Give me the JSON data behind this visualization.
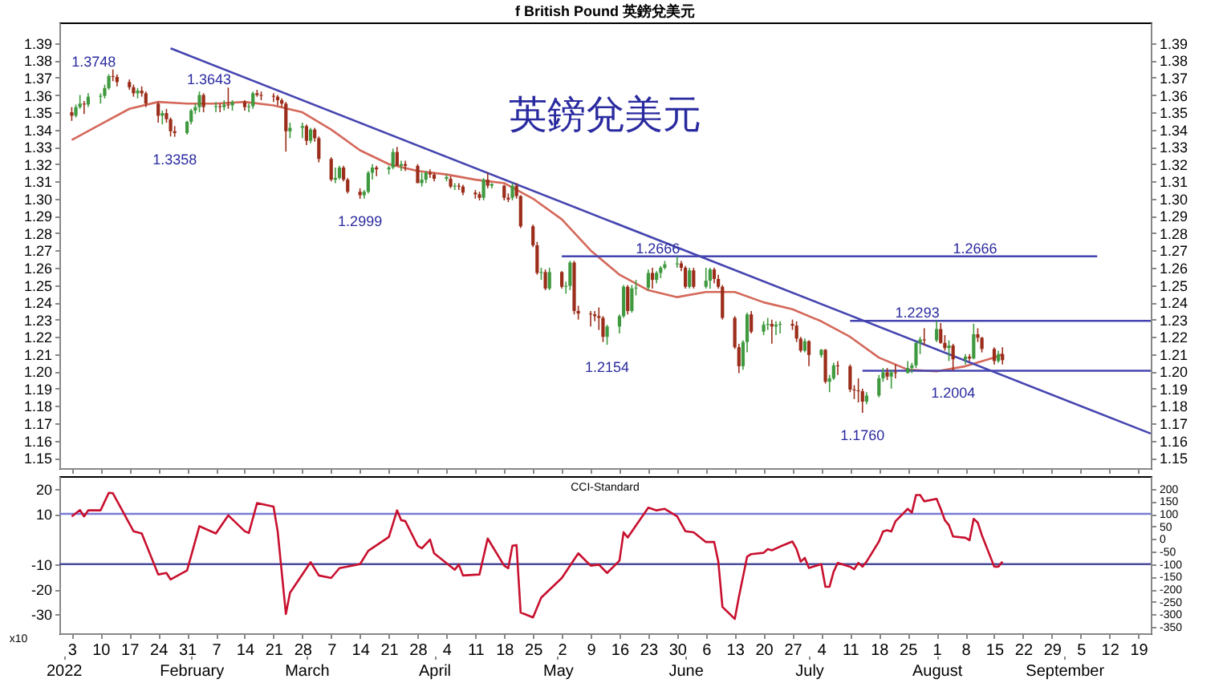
{
  "chart_data": [
    {
      "type": "candlestick",
      "title": "f British Pound 英鎊兌美元",
      "xlim": [
        "2021-12-31",
        "2022-09-22"
      ],
      "tick_labels": "y",
      "xticks": [
        "2022-01-03",
        "2022-01-10",
        "2022-01-17",
        "2022-01-24",
        "2022-01-31",
        "2022-02-07",
        "2022-02-14",
        "2022-02-21",
        "2022-02-28",
        "2022-03-07",
        "2022-03-14",
        "2022-03-21",
        "2022-03-28",
        "2022-04-04",
        "2022-04-11",
        "2022-04-18",
        "2022-04-25",
        "2022-05-02",
        "2022-05-09",
        "2022-05-16",
        "2022-05-23",
        "2022-05-30",
        "2022-06-06",
        "2022-06-13",
        "2022-06-20",
        "2022-06-27",
        "2022-07-04",
        "2022-07-11",
        "2022-07-18",
        "2022-07-25",
        "2022-08-01",
        "2022-08-08",
        "2022-08-15",
        "2022-08-22",
        "2022-08-29",
        "2022-09-05",
        "2022-09-12",
        "2022-09-19"
      ],
      "ylim": [
        1.144,
        1.402
      ],
      "yticks": [
        1.15,
        1.16,
        1.17,
        1.18,
        1.19,
        {
          "value": 1.2,
          "label": "1.20"
        },
        1.21,
        1.22,
        1.23,
        1.24,
        1.25,
        1.26,
        1.27,
        1.28,
        1.29,
        {
          "value": 1.3,
          "label": "1.30"
        },
        1.31,
        1.32,
        1.33,
        1.34,
        1.35,
        1.36,
        1.37,
        1.38,
        1.39
      ],
      "y2lim": [
        1.144,
        1.402
      ],
      "y2ticks": [
        1.15,
        1.16,
        1.17,
        1.18,
        1.19,
        {
          "value": 1.2,
          "label": "1.20"
        },
        1.21,
        1.22,
        1.23,
        1.24,
        1.25,
        1.26,
        1.27,
        1.28,
        1.29,
        {
          "value": 1.3,
          "label": "1.30"
        },
        1.31,
        1.32,
        1.33,
        1.34,
        1.35,
        1.36,
        1.37,
        1.38,
        1.39
      ],
      "x": [
        "2022-01-03",
        "2022-01-04",
        "2022-01-05",
        "2022-01-06",
        "2022-01-07",
        "2022-01-10",
        "2022-01-11",
        "2022-01-12",
        "2022-01-13",
        "2022-01-14",
        "2022-01-17",
        "2022-01-18",
        "2022-01-19",
        "2022-01-20",
        "2022-01-21",
        "2022-01-24",
        "2022-01-25",
        "2022-01-26",
        "2022-01-27",
        "2022-01-28",
        "2022-01-31",
        "2022-02-01",
        "2022-02-02",
        "2022-02-03",
        "2022-02-04",
        "2022-02-07",
        "2022-02-08",
        "2022-02-09",
        "2022-02-10",
        "2022-02-11",
        "2022-02-14",
        "2022-02-15",
        "2022-02-16",
        "2022-02-17",
        "2022-02-18",
        "2022-02-21",
        "2022-02-22",
        "2022-02-23",
        "2022-02-24",
        "2022-02-25",
        "2022-02-28",
        "2022-03-01",
        "2022-03-02",
        "2022-03-03",
        "2022-03-04",
        "2022-03-07",
        "2022-03-08",
        "2022-03-09",
        "2022-03-10",
        "2022-03-11",
        "2022-03-14",
        "2022-03-15",
        "2022-03-16",
        "2022-03-17",
        "2022-03-18",
        "2022-03-21",
        "2022-03-22",
        "2022-03-23",
        "2022-03-24",
        "2022-03-25",
        "2022-03-28",
        "2022-03-29",
        "2022-03-30",
        "2022-03-31",
        "2022-04-01",
        "2022-04-04",
        "2022-04-05",
        "2022-04-06",
        "2022-04-07",
        "2022-04-08",
        "2022-04-11",
        "2022-04-12",
        "2022-04-13",
        "2022-04-14",
        "2022-04-15",
        "2022-04-18",
        "2022-04-19",
        "2022-04-20",
        "2022-04-21",
        "2022-04-22",
        "2022-04-25",
        "2022-04-26",
        "2022-04-27",
        "2022-04-28",
        "2022-04-29",
        "2022-05-02",
        "2022-05-03",
        "2022-05-04",
        "2022-05-05",
        "2022-05-06",
        "2022-05-09",
        "2022-05-10",
        "2022-05-11",
        "2022-05-12",
        "2022-05-13",
        "2022-05-16",
        "2022-05-17",
        "2022-05-18",
        "2022-05-19",
        "2022-05-20",
        "2022-05-23",
        "2022-05-24",
        "2022-05-25",
        "2022-05-26",
        "2022-05-27",
        "2022-05-30",
        "2022-05-31",
        "2022-06-01",
        "2022-06-02",
        "2022-06-03",
        "2022-06-06",
        "2022-06-07",
        "2022-06-08",
        "2022-06-09",
        "2022-06-10",
        "2022-06-13",
        "2022-06-14",
        "2022-06-15",
        "2022-06-16",
        "2022-06-17",
        "2022-06-20",
        "2022-06-21",
        "2022-06-22",
        "2022-06-23",
        "2022-06-24",
        "2022-06-27",
        "2022-06-28",
        "2022-06-29",
        "2022-06-30",
        "2022-07-01",
        "2022-07-04",
        "2022-07-05",
        "2022-07-06",
        "2022-07-07",
        "2022-07-08",
        "2022-07-11",
        "2022-07-12",
        "2022-07-13",
        "2022-07-14",
        "2022-07-15",
        "2022-07-18",
        "2022-07-19",
        "2022-07-20",
        "2022-07-21",
        "2022-07-22",
        "2022-07-25",
        "2022-07-26",
        "2022-07-27",
        "2022-07-28",
        "2022-07-29",
        "2022-08-01",
        "2022-08-02",
        "2022-08-03",
        "2022-08-04",
        "2022-08-05",
        "2022-08-08",
        "2022-08-09",
        "2022-08-10",
        "2022-08-11",
        "2022-08-12",
        "2022-08-15",
        "2022-08-16",
        "2022-08-17"
      ],
      "ohlc": [
        [
          1.35,
          1.353,
          1.345,
          1.348
        ],
        [
          1.348,
          1.3545,
          1.347,
          1.353
        ],
        [
          1.353,
          1.36,
          1.352,
          1.355
        ],
        [
          1.355,
          1.3565,
          1.349,
          1.3545
        ],
        [
          1.3545,
          1.361,
          1.353,
          1.359
        ],
        [
          1.359,
          1.361,
          1.355,
          1.3595
        ],
        [
          1.3595,
          1.366,
          1.358,
          1.364
        ],
        [
          1.364,
          1.372,
          1.363,
          1.371
        ],
        [
          1.371,
          1.3748,
          1.368,
          1.3705
        ],
        [
          1.3705,
          1.372,
          1.365,
          1.3675
        ],
        [
          1.3675,
          1.369,
          1.363,
          1.3645
        ],
        [
          1.3645,
          1.366,
          1.359,
          1.361
        ],
        [
          1.361,
          1.364,
          1.358,
          1.3625
        ],
        [
          1.3625,
          1.365,
          1.359,
          1.361
        ],
        [
          1.361,
          1.362,
          1.353,
          1.355
        ],
        [
          1.355,
          1.356,
          1.344,
          1.348
        ],
        [
          1.348,
          1.351,
          1.343,
          1.3495
        ],
        [
          1.3495,
          1.352,
          1.344,
          1.346
        ],
        [
          1.346,
          1.347,
          1.336,
          1.339
        ],
        [
          1.339,
          1.342,
          1.3358,
          1.338
        ],
        [
          1.338,
          1.345,
          1.337,
          1.3445
        ],
        [
          1.3445,
          1.352,
          1.343,
          1.351
        ],
        [
          1.351,
          1.355,
          1.349,
          1.353
        ],
        [
          1.353,
          1.362,
          1.35,
          1.36
        ],
        [
          1.36,
          1.361,
          1.35,
          1.353
        ],
        [
          1.353,
          1.356,
          1.35,
          1.3535
        ],
        [
          1.3535,
          1.355,
          1.35,
          1.353
        ],
        [
          1.353,
          1.357,
          1.351,
          1.3545
        ],
        [
          1.3545,
          1.3643,
          1.352,
          1.354
        ],
        [
          1.354,
          1.357,
          1.351,
          1.356
        ],
        [
          1.356,
          1.357,
          1.351,
          1.353
        ],
        [
          1.353,
          1.355,
          1.35,
          1.3535
        ],
        [
          1.3535,
          1.362,
          1.352,
          1.361
        ],
        [
          1.361,
          1.363,
          1.359,
          1.36
        ],
        [
          1.36,
          1.362,
          1.357,
          1.3595
        ],
        [
          1.3595,
          1.361,
          1.356,
          1.359
        ],
        [
          1.359,
          1.36,
          1.354,
          1.357
        ],
        [
          1.357,
          1.358,
          1.353,
          1.355
        ],
        [
          1.355,
          1.356,
          1.3272,
          1.339
        ],
        [
          1.339,
          1.344,
          1.335,
          1.341
        ],
        [
          1.341,
          1.344,
          1.335,
          1.342
        ],
        [
          1.342,
          1.343,
          1.331,
          1.3335
        ],
        [
          1.3335,
          1.341,
          1.332,
          1.34
        ],
        [
          1.34,
          1.341,
          1.333,
          1.335
        ],
        [
          1.335,
          1.336,
          1.321,
          1.323
        ],
        [
          1.323,
          1.324,
          1.31,
          1.311
        ],
        [
          1.311,
          1.318,
          1.309,
          1.312
        ],
        [
          1.312,
          1.319,
          1.311,
          1.318
        ],
        [
          1.318,
          1.319,
          1.31,
          1.311
        ],
        [
          1.311,
          1.312,
          1.303,
          1.304
        ],
        [
          1.304,
          1.306,
          1.2999,
          1.302
        ],
        [
          1.302,
          1.305,
          1.3,
          1.304
        ],
        [
          1.304,
          1.316,
          1.303,
          1.315
        ],
        [
          1.315,
          1.32,
          1.311,
          1.318
        ],
        [
          1.318,
          1.319,
          1.313,
          1.317
        ],
        [
          1.317,
          1.319,
          1.314,
          1.318
        ],
        [
          1.318,
          1.329,
          1.317,
          1.327
        ],
        [
          1.327,
          1.33,
          1.319,
          1.319
        ],
        [
          1.319,
          1.322,
          1.316,
          1.32
        ],
        [
          1.32,
          1.322,
          1.316,
          1.319
        ],
        [
          1.319,
          1.32,
          1.309,
          1.309
        ],
        [
          1.309,
          1.315,
          1.307,
          1.311
        ],
        [
          1.311,
          1.316,
          1.309,
          1.315
        ],
        [
          1.315,
          1.317,
          1.312,
          1.314
        ],
        [
          1.314,
          1.315,
          1.31,
          1.3115
        ],
        [
          1.3115,
          1.314,
          1.31,
          1.3125
        ],
        [
          1.3115,
          1.313,
          1.306,
          1.307
        ],
        [
          1.307,
          1.309,
          1.305,
          1.3075
        ],
        [
          1.3075,
          1.309,
          1.305,
          1.307
        ],
        [
          1.307,
          1.308,
          1.302,
          1.3035
        ],
        [
          1.3035,
          1.305,
          1.3,
          1.3025
        ],
        [
          1.3025,
          1.304,
          1.299,
          1.3005
        ],
        [
          1.3005,
          1.312,
          1.299,
          1.311
        ],
        [
          1.311,
          1.315,
          1.306,
          1.3075
        ],
        [
          1.3075,
          1.309,
          1.306,
          1.3085
        ],
        [
          1.3075,
          1.308,
          1.299,
          1.3005
        ],
        [
          1.3005,
          1.303,
          1.298,
          1.2995
        ],
        [
          1.3005,
          1.309,
          1.299,
          1.3075
        ],
        [
          1.3075,
          1.309,
          1.3,
          1.3015
        ],
        [
          1.3015,
          1.302,
          1.283,
          1.284
        ],
        [
          1.284,
          1.285,
          1.272,
          1.273
        ],
        [
          1.273,
          1.275,
          1.256,
          1.257
        ],
        [
          1.257,
          1.26,
          1.253,
          1.2575
        ],
        [
          1.2575,
          1.259,
          1.247,
          1.248
        ],
        [
          1.248,
          1.26,
          1.247,
          1.2575
        ],
        [
          1.2575,
          1.258,
          1.248,
          1.249
        ],
        [
          1.249,
          1.252,
          1.245,
          1.2495
        ],
        [
          1.2495,
          1.264,
          1.247,
          1.263
        ],
        [
          1.263,
          1.264,
          1.233,
          1.235
        ],
        [
          1.235,
          1.238,
          1.23,
          1.2335
        ],
        [
          1.2335,
          1.235,
          1.226,
          1.233
        ],
        [
          1.233,
          1.235,
          1.229,
          1.232
        ],
        [
          1.232,
          1.237,
          1.224,
          1.231
        ],
        [
          1.231,
          1.232,
          1.217,
          1.22
        ],
        [
          1.22,
          1.227,
          1.2154,
          1.226
        ],
        [
          1.226,
          1.233,
          1.222,
          1.232
        ],
        [
          1.232,
          1.25,
          1.231,
          1.249
        ],
        [
          1.249,
          1.25,
          1.233,
          1.235
        ],
        [
          1.235,
          1.25,
          1.234,
          1.248
        ],
        [
          1.248,
          1.253,
          1.244,
          1.2485
        ],
        [
          1.2485,
          1.259,
          1.247,
          1.257
        ],
        [
          1.257,
          1.26,
          1.248,
          1.253
        ],
        [
          1.253,
          1.258,
          1.251,
          1.257
        ],
        [
          1.257,
          1.261,
          1.254,
          1.26
        ],
        [
          1.26,
          1.264,
          1.259,
          1.262
        ],
        [
          1.262,
          1.2666,
          1.26,
          1.2625
        ],
        [
          1.2625,
          1.264,
          1.258,
          1.26
        ],
        [
          1.26,
          1.261,
          1.248,
          1.249
        ],
        [
          1.249,
          1.26,
          1.248,
          1.2585
        ],
        [
          1.2585,
          1.26,
          1.248,
          1.249
        ],
        [
          1.249,
          1.26,
          1.248,
          1.2525
        ],
        [
          1.2525,
          1.26,
          1.248,
          1.259
        ],
        [
          1.259,
          1.26,
          1.251,
          1.2535
        ],
        [
          1.2535,
          1.256,
          1.248,
          1.249
        ],
        [
          1.249,
          1.25,
          1.23,
          1.231
        ],
        [
          1.231,
          1.232,
          1.213,
          1.214
        ],
        [
          1.214,
          1.216,
          1.199,
          1.203
        ],
        [
          1.203,
          1.218,
          1.201,
          1.217
        ],
        [
          1.217,
          1.234,
          1.211,
          1.233
        ],
        [
          1.233,
          1.235,
          1.222,
          1.223
        ],
        [
          1.223,
          1.229,
          1.221,
          1.227
        ],
        [
          1.227,
          1.231,
          1.224,
          1.2275
        ],
        [
          1.2275,
          1.23,
          1.216,
          1.226
        ],
        [
          1.226,
          1.229,
          1.221,
          1.227
        ],
        [
          1.227,
          1.229,
          1.222,
          1.2275
        ],
        [
          1.2275,
          1.23,
          1.224,
          1.2265
        ],
        [
          1.2265,
          1.229,
          1.217,
          1.219
        ],
        [
          1.219,
          1.22,
          1.211,
          1.212
        ],
        [
          1.212,
          1.219,
          1.211,
          1.2175
        ],
        [
          1.2175,
          1.218,
          1.203,
          1.2095
        ],
        [
          1.2095,
          1.213,
          1.208,
          1.2125
        ],
        [
          1.2125,
          1.213,
          1.193,
          1.194
        ],
        [
          1.194,
          1.198,
          1.188,
          1.196
        ],
        [
          1.196,
          1.205,
          1.195,
          1.2035
        ],
        [
          1.2035,
          1.206,
          1.198,
          1.203
        ],
        [
          1.203,
          1.204,
          1.188,
          1.1895
        ],
        [
          1.1895,
          1.192,
          1.184,
          1.189
        ],
        [
          1.189,
          1.196,
          1.182,
          1.1885
        ],
        [
          1.1885,
          1.19,
          1.176,
          1.1825
        ],
        [
          1.1825,
          1.188,
          1.181,
          1.186
        ],
        [
          1.186,
          1.198,
          1.185,
          1.196
        ],
        [
          1.196,
          1.202,
          1.194,
          1.1995
        ],
        [
          1.1995,
          1.202,
          1.195,
          1.197
        ],
        [
          1.197,
          1.201,
          1.19,
          1.1995
        ],
        [
          1.1995,
          1.204,
          1.196,
          1.199
        ],
        [
          1.199,
          1.206,
          1.199,
          1.202
        ],
        [
          1.202,
          1.205,
          1.199,
          1.2035
        ],
        [
          1.2035,
          1.217,
          1.202,
          1.2165
        ],
        [
          1.2165,
          1.22,
          1.21,
          1.2185
        ],
        [
          1.2185,
          1.225,
          1.215,
          1.218
        ],
        [
          1.218,
          1.2293,
          1.217,
          1.2245
        ],
        [
          1.2245,
          1.228,
          1.216,
          1.2165
        ],
        [
          1.2165,
          1.221,
          1.212,
          1.2135
        ],
        [
          1.2135,
          1.218,
          1.206,
          1.215
        ],
        [
          1.215,
          1.216,
          1.2004,
          1.207
        ],
        [
          1.207,
          1.21,
          1.204,
          1.2085
        ],
        [
          1.2085,
          1.21,
          1.206,
          1.2075
        ],
        [
          1.2075,
          1.2276,
          1.207,
          1.2215
        ],
        [
          1.2215,
          1.225,
          1.217,
          1.2195
        ],
        [
          1.2195,
          1.22,
          1.211,
          1.213
        ],
        [
          1.213,
          1.214,
          1.204,
          1.206
        ],
        [
          1.206,
          1.212,
          1.205,
          1.21
        ],
        [
          1.21,
          1.214,
          1.204,
          1.2065
        ]
      ],
      "series": [
        {
          "type": "line",
          "color": "#d4685a",
          "x": [
            "2022-01-03",
            "2022-01-10",
            "2022-01-17",
            "2022-01-24",
            "2022-01-31",
            "2022-02-07",
            "2022-02-14",
            "2022-02-21",
            "2022-02-28",
            "2022-03-07",
            "2022-03-14",
            "2022-03-21",
            "2022-03-28",
            "2022-04-04",
            "2022-04-11",
            "2022-04-18",
            "2022-04-25",
            "2022-05-02",
            "2022-05-09",
            "2022-05-16",
            "2022-05-23",
            "2022-05-30",
            "2022-06-06",
            "2022-06-13",
            "2022-06-20",
            "2022-06-27",
            "2022-07-04",
            "2022-07-11",
            "2022-07-18",
            "2022-07-25",
            "2022-08-01",
            "2022-08-08",
            "2022-08-15",
            "2022-08-17"
          ],
          "values": [
            1.334,
            1.343,
            1.352,
            1.356,
            1.355,
            1.355,
            1.356,
            1.354,
            1.35,
            1.34,
            1.328,
            1.32,
            1.316,
            1.314,
            1.311,
            1.309,
            1.3,
            1.288,
            1.27,
            1.256,
            1.247,
            1.243,
            1.246,
            1.246,
            1.24,
            1.236,
            1.229,
            1.22,
            1.208,
            1.201,
            1.2,
            1.203,
            1.208,
            1.21
          ]
        },
        {
          "type": "line",
          "color": "#4545b0",
          "x": [
            "2022-01-27",
            "2022-09-22"
          ],
          "values": [
            1.387,
            1.164
          ]
        },
        {
          "type": "line",
          "color": "#4545b0",
          "x": [
            "2022-05-02",
            "2022-09-09"
          ],
          "values": [
            1.2666,
            1.2666
          ]
        },
        {
          "type": "line",
          "color": "#4545b0",
          "x": [
            "2022-07-11",
            "2022-09-22"
          ],
          "values": [
            1.2293,
            1.2293
          ]
        },
        {
          "type": "line",
          "color": "#4545b0",
          "x": [
            "2022-07-14",
            "2022-09-22"
          ],
          "values": [
            1.2004,
            1.2004
          ]
        }
      ],
      "annotations": [
        "英鎊兌美元",
        {
          "text": "1.3748",
          "x": "2022-01-13",
          "y": 1.3748
        },
        {
          "text": "1.3643",
          "x": "2022-02-10",
          "y": 1.3643
        },
        {
          "text": "1.3358",
          "x": "2022-01-28",
          "y": 1.3358
        },
        {
          "text": "1.2999",
          "x": "2022-03-14",
          "y": 1.2999
        },
        {
          "text": "1.2666",
          "x": "2022-05-30",
          "y": 1.2666
        },
        {
          "text": "1.2154",
          "x": "2022-05-13",
          "y": 1.2154
        },
        {
          "text": "1.2666",
          "x": "2022-08-15",
          "y": 1.2666
        },
        {
          "text": "1.2293",
          "x": "2022-08-01",
          "y": 1.2293
        },
        {
          "text": "1.2004",
          "x": "2022-08-05",
          "y": 1.2004
        },
        {
          "text": "1.1760",
          "x": "2022-07-14",
          "y": 1.176
        }
      ]
    },
    {
      "type": "line",
      "title": "CCI-Standard",
      "ylabel": "x10",
      "xlim": [
        "2021-12-31",
        "2022-09-22"
      ],
      "xticks": [
        {
          "value": "2022-01-03",
          "label": "3"
        },
        {
          "value": "2022-01-10",
          "label": "10"
        },
        {
          "value": "2022-01-17",
          "label": "17"
        },
        {
          "value": "2022-01-24",
          "label": "24"
        },
        {
          "value": "2022-01-31",
          "label": "31"
        },
        {
          "value": "2022-02-07",
          "label": "7"
        },
        {
          "value": "2022-02-14",
          "label": "14"
        },
        {
          "value": "2022-02-21",
          "label": "21"
        },
        {
          "value": "2022-02-28",
          "label": "28"
        },
        {
          "value": "2022-03-07",
          "label": "7"
        },
        {
          "value": "2022-03-14",
          "label": "14"
        },
        {
          "value": "2022-03-21",
          "label": "21"
        },
        {
          "value": "2022-03-28",
          "label": "28"
        },
        {
          "value": "2022-04-04",
          "label": "4"
        },
        {
          "value": "2022-04-11",
          "label": "11"
        },
        {
          "value": "2022-04-18",
          "label": "18"
        },
        {
          "value": "2022-04-25",
          "label": "25"
        },
        {
          "value": "2022-05-02",
          "label": "2"
        },
        {
          "value": "2022-05-09",
          "label": "9"
        },
        {
          "value": "2022-05-16",
          "label": "16"
        },
        {
          "value": "2022-05-23",
          "label": "23"
        },
        {
          "value": "2022-05-30",
          "label": "30"
        },
        {
          "value": "2022-06-06",
          "label": "6"
        },
        {
          "value": "2022-06-13",
          "label": "13"
        },
        {
          "value": "2022-06-20",
          "label": "20"
        },
        {
          "value": "2022-06-27",
          "label": "27"
        },
        {
          "value": "2022-07-04",
          "label": "4"
        },
        {
          "value": "2022-07-11",
          "label": "11"
        },
        {
          "value": "2022-07-18",
          "label": "18"
        },
        {
          "value": "2022-07-25",
          "label": "25"
        },
        {
          "value": "2022-08-01",
          "label": "1"
        },
        {
          "value": "2022-08-08",
          "label": "8"
        },
        {
          "value": "2022-08-15",
          "label": "15"
        },
        {
          "value": "2022-08-22",
          "label": "22"
        },
        {
          "value": "2022-08-29",
          "label": "29"
        },
        {
          "value": "2022-09-05",
          "label": "5"
        },
        {
          "value": "2022-09-12",
          "label": "12"
        },
        {
          "value": "2022-09-19",
          "label": "19"
        }
      ],
      "x2lim": [
        "2021-12-31",
        "2022-09-22"
      ],
      "x2ticks": [
        {
          "value": "2022-01-01",
          "label": "2022"
        },
        {
          "value": "2022-02-01",
          "label": "February"
        },
        {
          "value": "2022-03-01",
          "label": "March"
        },
        {
          "value": "2022-04-01",
          "label": "April"
        },
        {
          "value": "2022-05-01",
          "label": "May"
        },
        {
          "value": "2022-06-01",
          "label": "June"
        },
        {
          "value": "2022-07-01",
          "label": "July"
        },
        {
          "value": "2022-08-01",
          "label": "August"
        },
        {
          "value": "2022-09-01",
          "label": "September"
        }
      ],
      "ylim": [
        -37.5,
        25
      ],
      "yticks": [
        20,
        10,
        -10,
        -20,
        -30
      ],
      "y2lim": [
        -375,
        250
      ],
      "y2ticks": [
        200,
        150,
        100,
        50,
        0,
        -50,
        -100,
        -150,
        -200,
        -250,
        -300,
        -350
      ],
      "ref_lines": [
        {
          "axis": "y2",
          "value": 100,
          "color": "#7b7bd6"
        },
        {
          "axis": "y2",
          "value": -100,
          "color": "#4b4b9b"
        }
      ],
      "series": [
        {
          "type": "line",
          "axis": "y2",
          "color": "#c8102e",
          "x": [
            "2022-01-03",
            "2022-01-05",
            "2022-01-06",
            "2022-01-07",
            "2022-01-10",
            "2022-01-12",
            "2022-01-13",
            "2022-01-18",
            "2022-01-20",
            "2022-01-24",
            "2022-01-26",
            "2022-01-27",
            "2022-01-31",
            "2022-02-03",
            "2022-02-07",
            "2022-02-10",
            "2022-02-14",
            "2022-02-15",
            "2022-02-17",
            "2022-02-21",
            "2022-02-22",
            "2022-02-24",
            "2022-02-25",
            "2022-03-02",
            "2022-03-04",
            "2022-03-07",
            "2022-03-09",
            "2022-03-14",
            "2022-03-16",
            "2022-03-21",
            "2022-03-23",
            "2022-03-24",
            "2022-03-25",
            "2022-03-28",
            "2022-03-29",
            "2022-03-31",
            "2022-04-01",
            "2022-04-06",
            "2022-04-07",
            "2022-04-08",
            "2022-04-12",
            "2022-04-14",
            "2022-04-18",
            "2022-04-19",
            "2022-04-20",
            "2022-04-21",
            "2022-04-22",
            "2022-04-25",
            "2022-04-27",
            "2022-05-02",
            "2022-05-06",
            "2022-05-09",
            "2022-05-11",
            "2022-05-13",
            "2022-05-16",
            "2022-05-17",
            "2022-05-18",
            "2022-05-23",
            "2022-05-25",
            "2022-05-27",
            "2022-05-30",
            "2022-06-01",
            "2022-06-03",
            "2022-06-06",
            "2022-06-08",
            "2022-06-09",
            "2022-06-10",
            "2022-06-13",
            "2022-06-14",
            "2022-06-16",
            "2022-06-17",
            "2022-06-20",
            "2022-06-21",
            "2022-06-22",
            "2022-06-24",
            "2022-06-27",
            "2022-06-28",
            "2022-06-29",
            "2022-06-30",
            "2022-07-01",
            "2022-07-04",
            "2022-07-05",
            "2022-07-06",
            "2022-07-07",
            "2022-07-08",
            "2022-07-11",
            "2022-07-12",
            "2022-07-13",
            "2022-07-14",
            "2022-07-15",
            "2022-07-18",
            "2022-07-19",
            "2022-07-20",
            "2022-07-21",
            "2022-07-22",
            "2022-07-25",
            "2022-07-26",
            "2022-07-27",
            "2022-07-28",
            "2022-07-29",
            "2022-08-01",
            "2022-08-02",
            "2022-08-03",
            "2022-08-04",
            "2022-08-05",
            "2022-08-08",
            "2022-08-09",
            "2022-08-10",
            "2022-08-11",
            "2022-08-12",
            "2022-08-15",
            "2022-08-16",
            "2022-08-17"
          ],
          "values": [
            90,
            115,
            90,
            114,
            114,
            184,
            182,
            31,
            22,
            -141,
            -135,
            -161,
            -125,
            51,
            22,
            94,
            31,
            24,
            143,
            129,
            31,
            -298,
            -214,
            -92,
            -145,
            -155,
            -116,
            -100,
            -47,
            8,
            114,
            75,
            71,
            -27,
            -37,
            -2,
            -57,
            -122,
            -102,
            -145,
            -141,
            2,
            -106,
            -116,
            -27,
            -24,
            -292,
            -312,
            -233,
            -155,
            -57,
            -106,
            -102,
            -135,
            -86,
            27,
            6,
            125,
            114,
            120,
            90,
            31,
            27,
            -12,
            -12,
            -90,
            -270,
            -318,
            -230,
            -70,
            -60,
            -55,
            -40,
            -45,
            -30,
            -10,
            -40,
            -90,
            -75,
            -115,
            -100,
            -190,
            -190,
            -130,
            -95,
            -110,
            -120,
            -95,
            -110,
            -90,
            -10,
            30,
            35,
            30,
            70,
            120,
            105,
            175,
            175,
            150,
            160,
            120,
            75,
            55,
            10,
            5,
            -5,
            80,
            65,
            15,
            -110,
            -110,
            -90
          ]
        }
      ]
    }
  ]
}
